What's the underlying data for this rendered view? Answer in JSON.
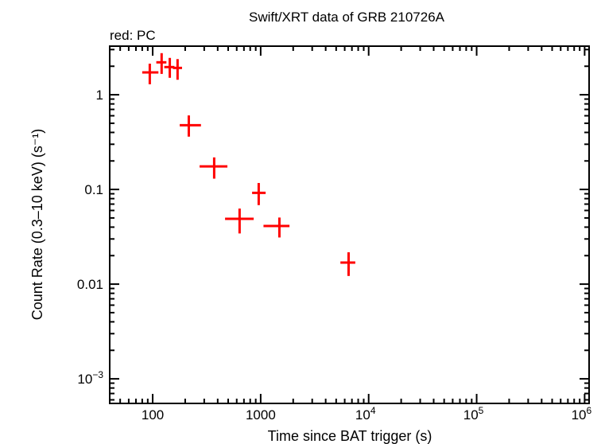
{
  "chart_data": {
    "type": "scatter",
    "title": "Swift/XRT data of GRB 210726A",
    "subtitle": "red: PC",
    "xlabel": "Time since BAT trigger (s)",
    "ylabel": "Count Rate (0.3–10 keV) (s⁻¹)",
    "xscale": "log",
    "yscale": "log",
    "xlim": [
      40,
      1100000
    ],
    "ylim": [
      0.00055,
      3.26
    ],
    "grid": false,
    "x_ticks": [
      {
        "value": 100,
        "label": "100"
      },
      {
        "value": 1000,
        "label": "1000"
      },
      {
        "value": 10000,
        "label": "10",
        "exp": "4"
      },
      {
        "value": 100000,
        "label": "10",
        "exp": "5"
      },
      {
        "value": 1000000,
        "label": "10",
        "exp": "6"
      }
    ],
    "y_ticks": [
      {
        "value": 1,
        "label": "1"
      },
      {
        "value": 0.1,
        "label": "0.1"
      },
      {
        "value": 0.01,
        "label": "0.01"
      },
      {
        "value": 0.001,
        "label": "10",
        "exp": "−3"
      }
    ],
    "series": [
      {
        "color": "#ff0000",
        "points": [
          {
            "x": 94,
            "xlo": 80,
            "xhi": 113,
            "y": 1.72,
            "ylo": 1.29,
            "yhi": 2.13
          },
          {
            "x": 121,
            "xlo": 108,
            "xhi": 134,
            "y": 2.2,
            "ylo": 1.66,
            "yhi": 2.75
          },
          {
            "x": 144,
            "xlo": 128,
            "xhi": 159,
            "y": 1.96,
            "ylo": 1.51,
            "yhi": 2.45
          },
          {
            "x": 170,
            "xlo": 154,
            "xhi": 187,
            "y": 1.92,
            "ylo": 1.44,
            "yhi": 2.38
          },
          {
            "x": 216,
            "xlo": 178,
            "xhi": 280,
            "y": 0.477,
            "ylo": 0.361,
            "yhi": 0.605
          },
          {
            "x": 371,
            "xlo": 272,
            "xhi": 492,
            "y": 0.175,
            "ylo": 0.13,
            "yhi": 0.218
          },
          {
            "x": 638,
            "xlo": 468,
            "xhi": 862,
            "y": 0.0489,
            "ylo": 0.0343,
            "yhi": 0.0628
          },
          {
            "x": 959,
            "xlo": 833,
            "xhi": 1112,
            "y": 0.092,
            "ylo": 0.0683,
            "yhi": 0.117
          },
          {
            "x": 1491,
            "xlo": 1062,
            "xhi": 1849,
            "y": 0.0411,
            "ylo": 0.0311,
            "yhi": 0.0505
          },
          {
            "x": 6520,
            "xlo": 5476,
            "xhi": 7520,
            "y": 0.0169,
            "ylo": 0.0122,
            "yhi": 0.0217
          }
        ]
      }
    ]
  }
}
